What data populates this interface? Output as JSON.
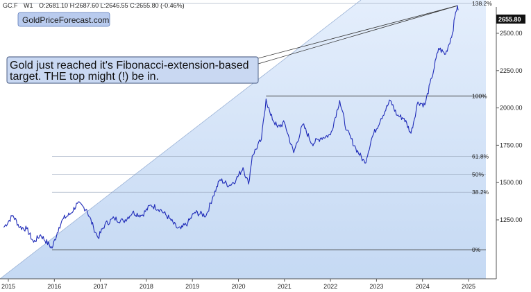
{
  "header": {
    "ticker": "GC.F",
    "timeframe": "W1",
    "ohlc": "O:2681.10 H:2687.60 L:2646.55 C:2655.80 (-0.46%)"
  },
  "brand_label": "GoldPriceForecast.com",
  "annotation": {
    "line1": "Gold just reached it's Fibonacci-extension-based",
    "line2": "target. THE top might (!) be in."
  },
  "last_price_label": "2655.80",
  "colors": {
    "price": "#1f2bb8",
    "fill_top": "#e4eefc",
    "fill_bottom": "#c5d9f3",
    "brand_box": "#b9cbee",
    "annotation_box": "#c9d8f2",
    "last_price_bg": "#111111"
  },
  "chart_data": {
    "type": "line",
    "series": [
      {
        "values": [
          [
            2014.9,
            1200
          ],
          [
            2015.1,
            1280
          ],
          [
            2015.25,
            1200
          ],
          [
            2015.4,
            1190
          ],
          [
            2015.55,
            1100
          ],
          [
            2015.7,
            1150
          ],
          [
            2015.95,
            1060
          ],
          [
            2016.1,
            1200
          ],
          [
            2016.2,
            1260
          ],
          [
            2016.35,
            1290
          ],
          [
            2016.5,
            1360
          ],
          [
            2016.7,
            1320
          ],
          [
            2016.85,
            1200
          ],
          [
            2016.95,
            1130
          ],
          [
            2017.1,
            1220
          ],
          [
            2017.3,
            1260
          ],
          [
            2017.5,
            1240
          ],
          [
            2017.7,
            1300
          ],
          [
            2017.9,
            1280
          ],
          [
            2018.1,
            1350
          ],
          [
            2018.3,
            1320
          ],
          [
            2018.5,
            1260
          ],
          [
            2018.65,
            1200
          ],
          [
            2018.75,
            1190
          ],
          [
            2018.9,
            1230
          ],
          [
            2019.05,
            1300
          ],
          [
            2019.3,
            1280
          ],
          [
            2019.45,
            1410
          ],
          [
            2019.6,
            1520
          ],
          [
            2019.8,
            1480
          ],
          [
            2019.95,
            1520
          ],
          [
            2020.1,
            1600
          ],
          [
            2020.22,
            1490
          ],
          [
            2020.3,
            1680
          ],
          [
            2020.5,
            1790
          ],
          [
            2020.6,
            2060
          ],
          [
            2020.7,
            1950
          ],
          [
            2020.85,
            1870
          ],
          [
            2021.0,
            1900
          ],
          [
            2021.2,
            1700
          ],
          [
            2021.4,
            1890
          ],
          [
            2021.6,
            1760
          ],
          [
            2021.8,
            1800
          ],
          [
            2022.0,
            1820
          ],
          [
            2022.2,
            2050
          ],
          [
            2022.35,
            1850
          ],
          [
            2022.55,
            1730
          ],
          [
            2022.75,
            1630
          ],
          [
            2022.9,
            1800
          ],
          [
            2023.1,
            1930
          ],
          [
            2023.3,
            2050
          ],
          [
            2023.45,
            1950
          ],
          [
            2023.6,
            1930
          ],
          [
            2023.75,
            1830
          ],
          [
            2023.9,
            2040
          ],
          [
            2024.05,
            2020
          ],
          [
            2024.2,
            2200
          ],
          [
            2024.35,
            2400
          ],
          [
            2024.5,
            2360
          ],
          [
            2024.65,
            2500
          ],
          [
            2024.72,
            2640
          ],
          [
            2024.76,
            2685
          ],
          [
            2024.78,
            2655.8
          ]
        ]
      }
    ],
    "y_axis": {
      "ticks": [
        1250,
        1500,
        1750,
        2000,
        2250,
        2500
      ],
      "tick_labels": [
        "1250.00",
        "1500.00",
        "1750.00",
        "2000.00",
        "2250.00",
        "2500.00"
      ]
    },
    "x_axis": {
      "ticks": [
        2015,
        2016,
        2017,
        2018,
        2019,
        2020,
        2021,
        2022,
        2023,
        2024,
        2025
      ],
      "tick_labels": [
        "2015",
        "2016",
        "2017",
        "2018",
        "2019",
        "2020",
        "2021",
        "2022",
        "2023",
        "2024",
        "2025"
      ]
    },
    "fibonacci_levels": [
      {
        "label": "0%",
        "value": 1050
      },
      {
        "label": "38.2%",
        "value": 1435
      },
      {
        "label": "50%",
        "value": 1555
      },
      {
        "label": "61.8%",
        "value": 1675
      },
      {
        "label": "100%",
        "value": 2080
      },
      {
        "label": "138.2%",
        "value": 2700
      }
    ],
    "grid": false
  }
}
